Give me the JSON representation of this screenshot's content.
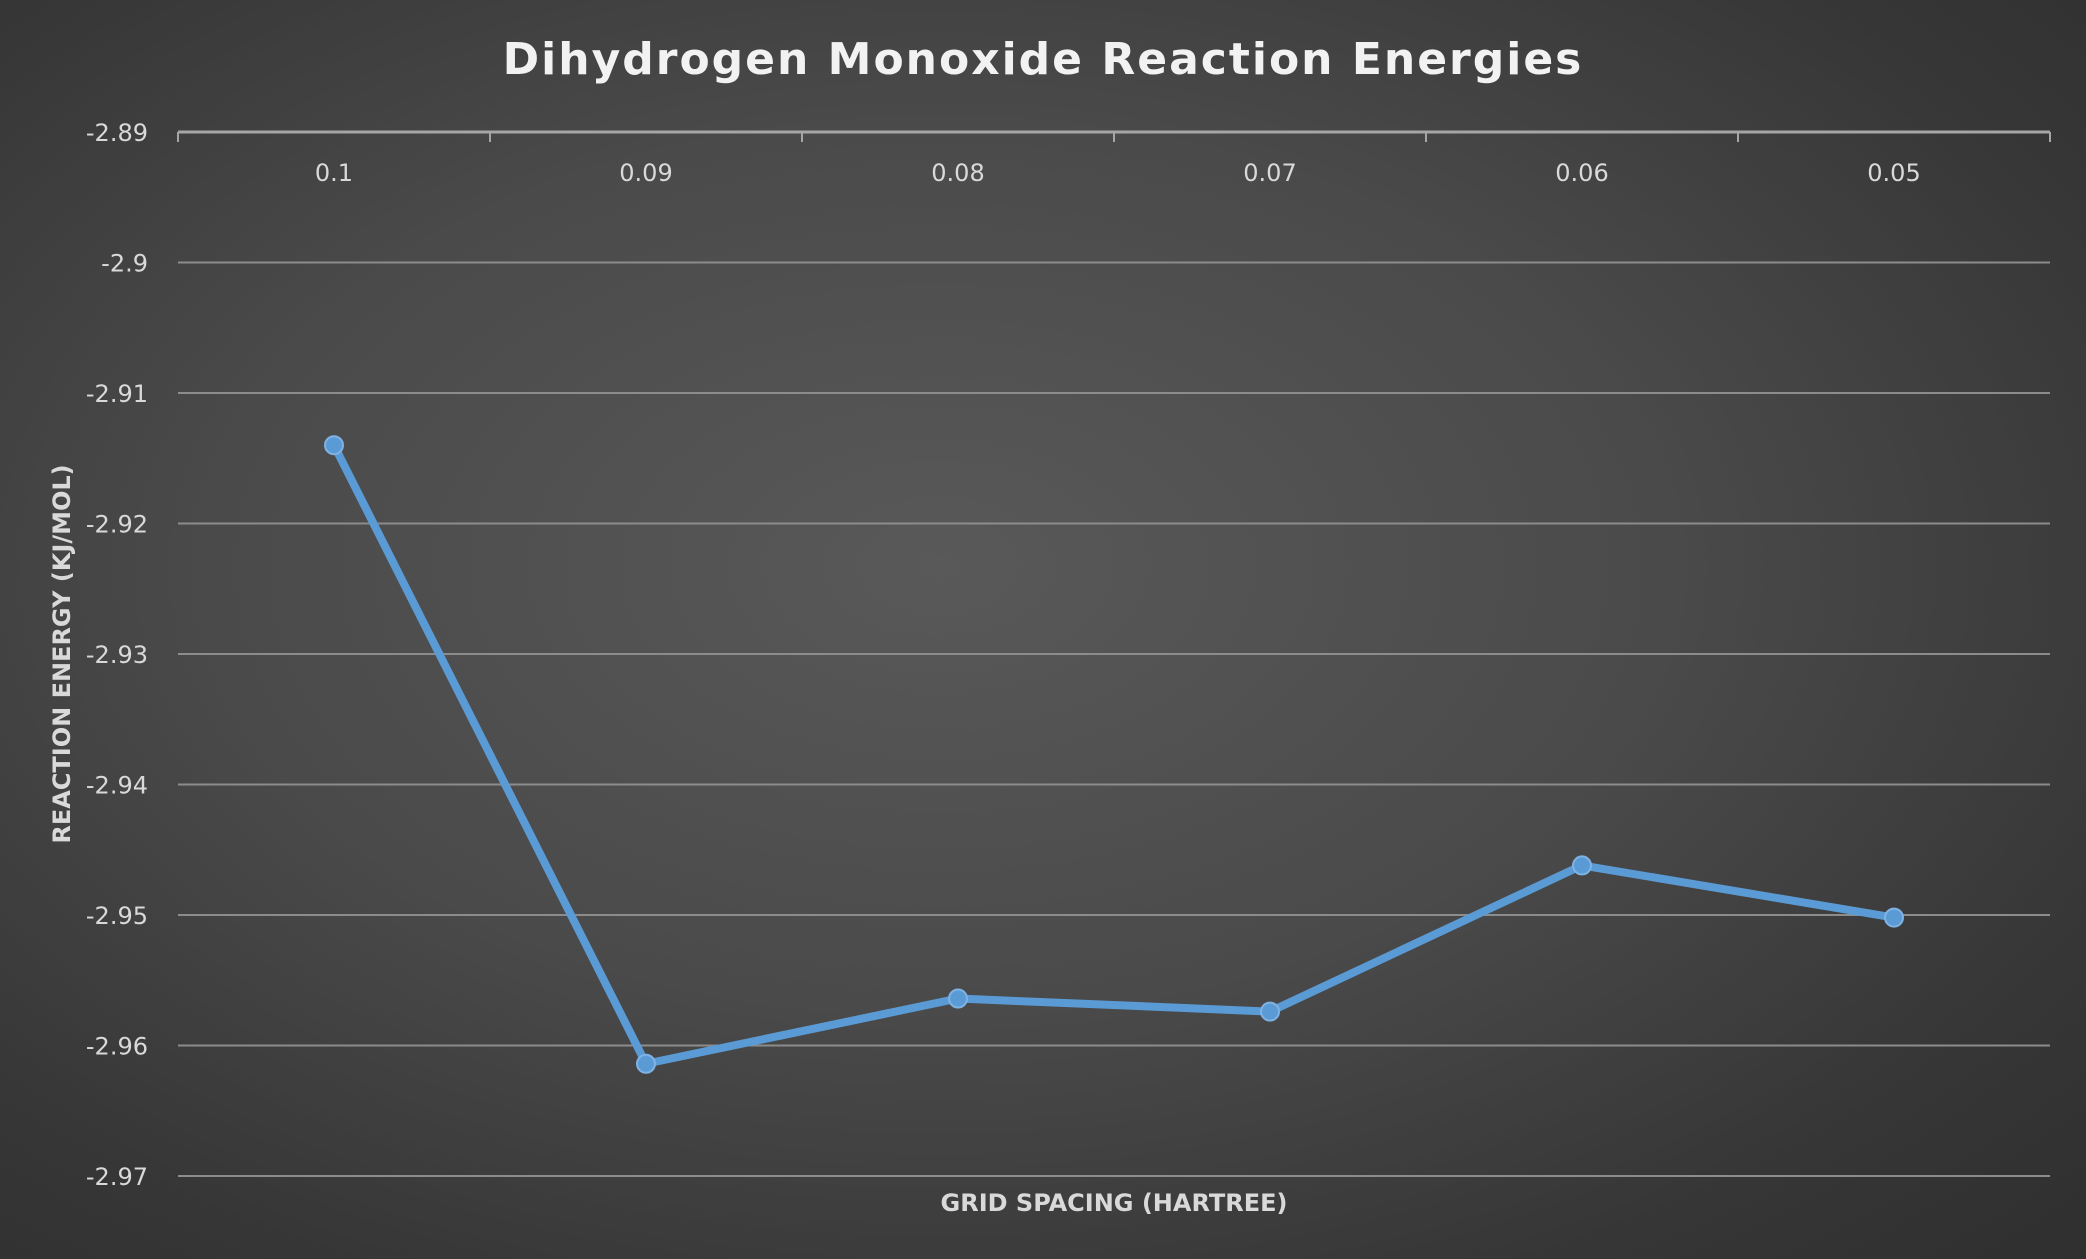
{
  "chart_data": {
    "type": "line",
    "title": "Dihydrogen Monoxide Reaction Energies",
    "xlabel": "GRID SPACING (HARTREE)",
    "ylabel": "REACTION ENERGY (KJ/MOL)",
    "categories": [
      "0.1",
      "0.09",
      "0.08",
      "0.07",
      "0.06",
      "0.05"
    ],
    "series": [
      {
        "values": [
          -2.914,
          -2.9614,
          -2.9564,
          -2.9574,
          -2.9462,
          -2.9502
        ]
      }
    ],
    "yticks": [
      "-2.89",
      "-2.9",
      "-2.91",
      "-2.92",
      "-2.93",
      "-2.94",
      "-2.95",
      "-2.96",
      "-2.97"
    ],
    "ylim": [
      -2.97,
      -2.89
    ],
    "x_axis_position": "top",
    "grid": true,
    "legend": "none",
    "colors": {
      "series": "#5b9bd5",
      "text": "#d9d9d9",
      "title": "#f2f2f2",
      "gridline": "#8c8c8c"
    }
  }
}
